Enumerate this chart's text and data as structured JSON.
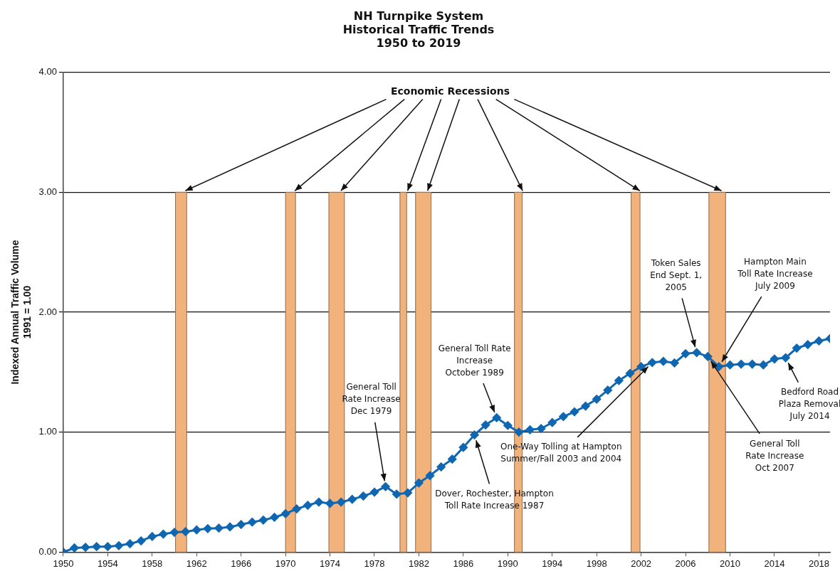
{
  "chart_data": {
    "type": "line",
    "title": "NH Turnpike System\nHistorical Traffic Trends\n1950 to 2019",
    "ylabel": "Indexed Annual Traffic Volume\n1991 = 1.00",
    "x": [
      1950,
      1951,
      1952,
      1953,
      1954,
      1955,
      1956,
      1957,
      1958,
      1959,
      1960,
      1961,
      1962,
      1963,
      1964,
      1965,
      1966,
      1967,
      1968,
      1969,
      1970,
      1971,
      1972,
      1973,
      1974,
      1975,
      1976,
      1977,
      1978,
      1979,
      1980,
      1981,
      1982,
      1983,
      1984,
      1985,
      1986,
      1987,
      1988,
      1989,
      1990,
      1991,
      1992,
      1993,
      1994,
      1995,
      1996,
      1997,
      1998,
      1999,
      2000,
      2001,
      2002,
      2003,
      2004,
      2005,
      2006,
      2007,
      2008,
      2009,
      2010,
      2011,
      2012,
      2013,
      2014,
      2015,
      2016,
      2017,
      2018,
      2019
    ],
    "series": [
      {
        "color": "#0f67b1",
        "values": [
          0,
          0.035,
          0.04,
          0.046,
          0.046,
          0.054,
          0.07,
          0.094,
          0.13,
          0.15,
          0.165,
          0.17,
          0.185,
          0.196,
          0.2,
          0.21,
          0.23,
          0.25,
          0.267,
          0.29,
          0.32,
          0.36,
          0.39,
          0.417,
          0.406,
          0.417,
          0.44,
          0.467,
          0.5,
          0.546,
          0.483,
          0.494,
          0.577,
          0.638,
          0.71,
          0.775,
          0.873,
          0.977,
          1.06,
          1.12,
          1.056,
          1.0,
          1.02,
          1.03,
          1.08,
          1.13,
          1.17,
          1.217,
          1.275,
          1.35,
          1.43,
          1.49,
          1.546,
          1.58,
          1.59,
          1.577,
          1.654,
          1.663,
          1.63,
          1.546,
          1.56,
          1.567,
          1.567,
          1.56,
          1.61,
          1.62,
          1.7,
          1.73,
          1.76,
          1.78
        ]
      }
    ],
    "marker": "diamond",
    "xlim": [
      1950,
      2019
    ],
    "xticks": [
      1950,
      1954,
      1958,
      1962,
      1966,
      1970,
      1974,
      1978,
      1982,
      1986,
      1990,
      1994,
      1998,
      2002,
      2006,
      2010,
      2014,
      2018
    ],
    "ylim": [
      0,
      4
    ],
    "yticks": [
      {
        "value": 0,
        "label": "0.00"
      },
      {
        "value": 1,
        "label": "1.00"
      },
      {
        "value": 2,
        "label": "2.00"
      },
      {
        "value": 3,
        "label": "3.00"
      },
      {
        "value": 4,
        "label": "4.00"
      }
    ],
    "grid": "y",
    "bands": [
      {
        "axis": "x",
        "from": 1960.1,
        "to": 1961.1,
        "color": "#f2b27c",
        "label": "Economic Recessions"
      },
      {
        "axis": "x",
        "from": 1970.0,
        "to": 1970.9,
        "color": "#f2b27c"
      },
      {
        "axis": "x",
        "from": 1973.9,
        "to": 1975.3,
        "color": "#f2b27c"
      },
      {
        "axis": "x",
        "from": 1980.3,
        "to": 1980.9,
        "color": "#f2b27c"
      },
      {
        "axis": "x",
        "from": 1981.7,
        "to": 1983.1,
        "color": "#f2b27c"
      },
      {
        "axis": "x",
        "from": 1990.6,
        "to": 1991.3,
        "color": "#f2b27c"
      },
      {
        "axis": "x",
        "from": 2001.1,
        "to": 2001.9,
        "color": "#f2b27c"
      },
      {
        "axis": "x",
        "from": 2008.1,
        "to": 2009.6,
        "color": "#f2b27c"
      }
    ],
    "annotations": [
      {
        "text": "General Toll\nRate Increase\nDec 1979",
        "x": 1979,
        "y": 0.546
      },
      {
        "text": "General Toll Rate\nIncrease\nOctober 1989",
        "x": 1989,
        "y": 1.12
      },
      {
        "text": "Dover, Rochester, Hampton\nToll Rate Increase 1987",
        "x": 1987,
        "y": 0.977
      },
      {
        "text": "One-Way Tolling at Hampton\nSummer/Fall 2003 and 2004",
        "x": 2003,
        "y": 1.58
      },
      {
        "text": "Token Sales\nEnd Sept. 1,\n2005",
        "x": 2007,
        "y": 1.663
      },
      {
        "text": "Hampton Main\nToll Rate Increase\nJuly 2009",
        "x": 2009,
        "y": 1.546
      },
      {
        "text": "General Toll\nRate Increase\nOct 2007",
        "x": 2008,
        "y": 1.63
      },
      {
        "text": "Bedford Road\nPlaza Removal\nJuly 2014",
        "x": 2015,
        "y": 1.62
      }
    ]
  }
}
